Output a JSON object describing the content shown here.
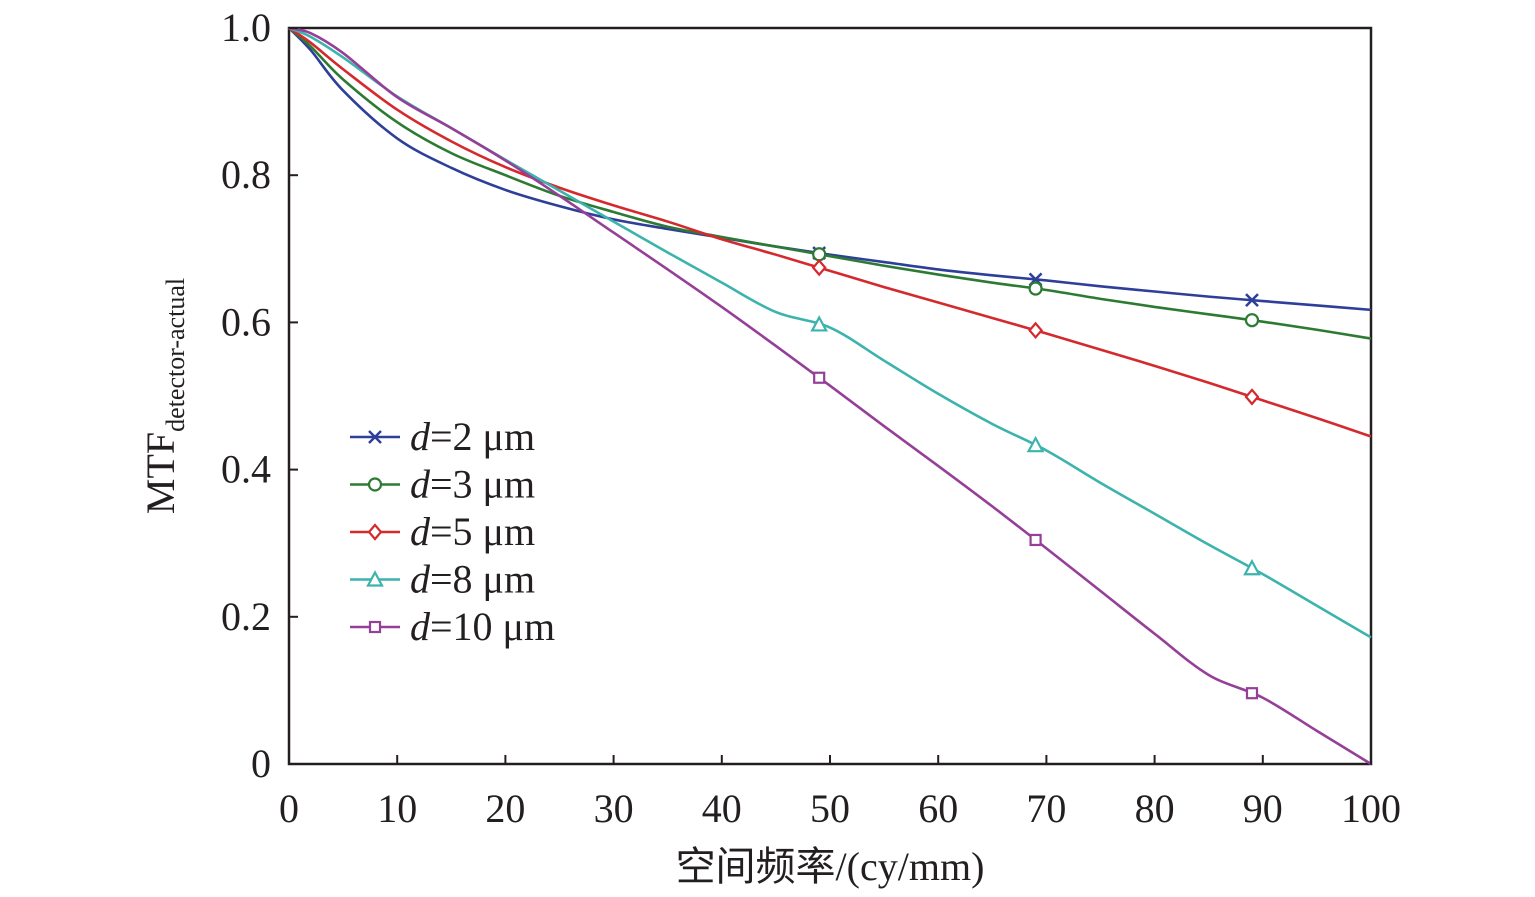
{
  "chart_data": {
    "type": "line",
    "title": "",
    "xlabel": "空间频率/(cy/mm)",
    "ylabel_main": "MTF",
    "ylabel_sub": "detector-actual",
    "xlim": [
      0,
      100
    ],
    "ylim": [
      0,
      1.0
    ],
    "x_ticks": [
      "0",
      "10",
      "20",
      "30",
      "40",
      "50",
      "60",
      "70",
      "80",
      "90",
      "100"
    ],
    "y_ticks": [
      "0",
      "0.2",
      "0.4",
      "0.6",
      "0.8",
      "1.0"
    ],
    "grid": false,
    "legend_position": "left-center",
    "x": [
      0,
      2,
      5,
      10,
      15,
      20,
      25,
      30,
      35,
      40,
      45,
      50,
      55,
      60,
      65,
      70,
      75,
      80,
      85,
      90,
      95,
      100
    ],
    "series": [
      {
        "name": "d=2 μm",
        "name_italic": "d",
        "name_rest": "=2 μm",
        "marker": "x",
        "color": "#2e3f99",
        "values": [
          1.0,
          0.97,
          0.915,
          0.85,
          0.81,
          0.78,
          0.758,
          0.74,
          0.727,
          0.715,
          0.703,
          0.692,
          0.682,
          0.672,
          0.664,
          0.657,
          0.649,
          0.642,
          0.635,
          0.629,
          0.623,
          0.617
        ]
      },
      {
        "name": "d=3 μm",
        "name_italic": "d",
        "name_rest": "=3 μm",
        "marker": "o",
        "color": "#2d7a33",
        "values": [
          1.0,
          0.975,
          0.93,
          0.872,
          0.83,
          0.8,
          0.772,
          0.75,
          0.73,
          0.716,
          0.703,
          0.69,
          0.677,
          0.665,
          0.654,
          0.644,
          0.632,
          0.621,
          0.611,
          0.601,
          0.59,
          0.578
        ]
      },
      {
        "name": "d=5 μm",
        "name_italic": "d",
        "name_rest": "=5 μm",
        "marker": "diamond",
        "color": "#d42a2e",
        "values": [
          1.0,
          0.98,
          0.944,
          0.889,
          0.846,
          0.811,
          0.783,
          0.759,
          0.737,
          0.713,
          0.692,
          0.67,
          0.648,
          0.627,
          0.606,
          0.585,
          0.563,
          0.541,
          0.518,
          0.494,
          0.47,
          0.445
        ]
      },
      {
        "name": "d=8 μm",
        "name_italic": "d",
        "name_rest": "=8 μm",
        "marker": "triangle",
        "color": "#3cb3ac",
        "values": [
          1.0,
          0.988,
          0.96,
          0.907,
          0.864,
          0.821,
          0.779,
          0.737,
          0.695,
          0.654,
          0.614,
          0.593,
          0.548,
          0.503,
          0.462,
          0.426,
          0.382,
          0.34,
          0.298,
          0.258,
          0.215,
          0.172
        ]
      },
      {
        "name": "d=10 μm",
        "name_italic": "d",
        "name_rest": "=10 μm",
        "marker": "square",
        "color": "#953f98",
        "values": [
          1.0,
          0.993,
          0.966,
          0.906,
          0.864,
          0.82,
          0.772,
          0.722,
          0.672,
          0.621,
          0.568,
          0.514,
          0.459,
          0.405,
          0.35,
          0.293,
          0.235,
          0.177,
          0.121,
          0.09,
          0.045,
          0.0
        ]
      }
    ],
    "marker_x": [
      49,
      69,
      89
    ]
  },
  "colors": {
    "axis": "#231f20",
    "background": "#ffffff"
  }
}
